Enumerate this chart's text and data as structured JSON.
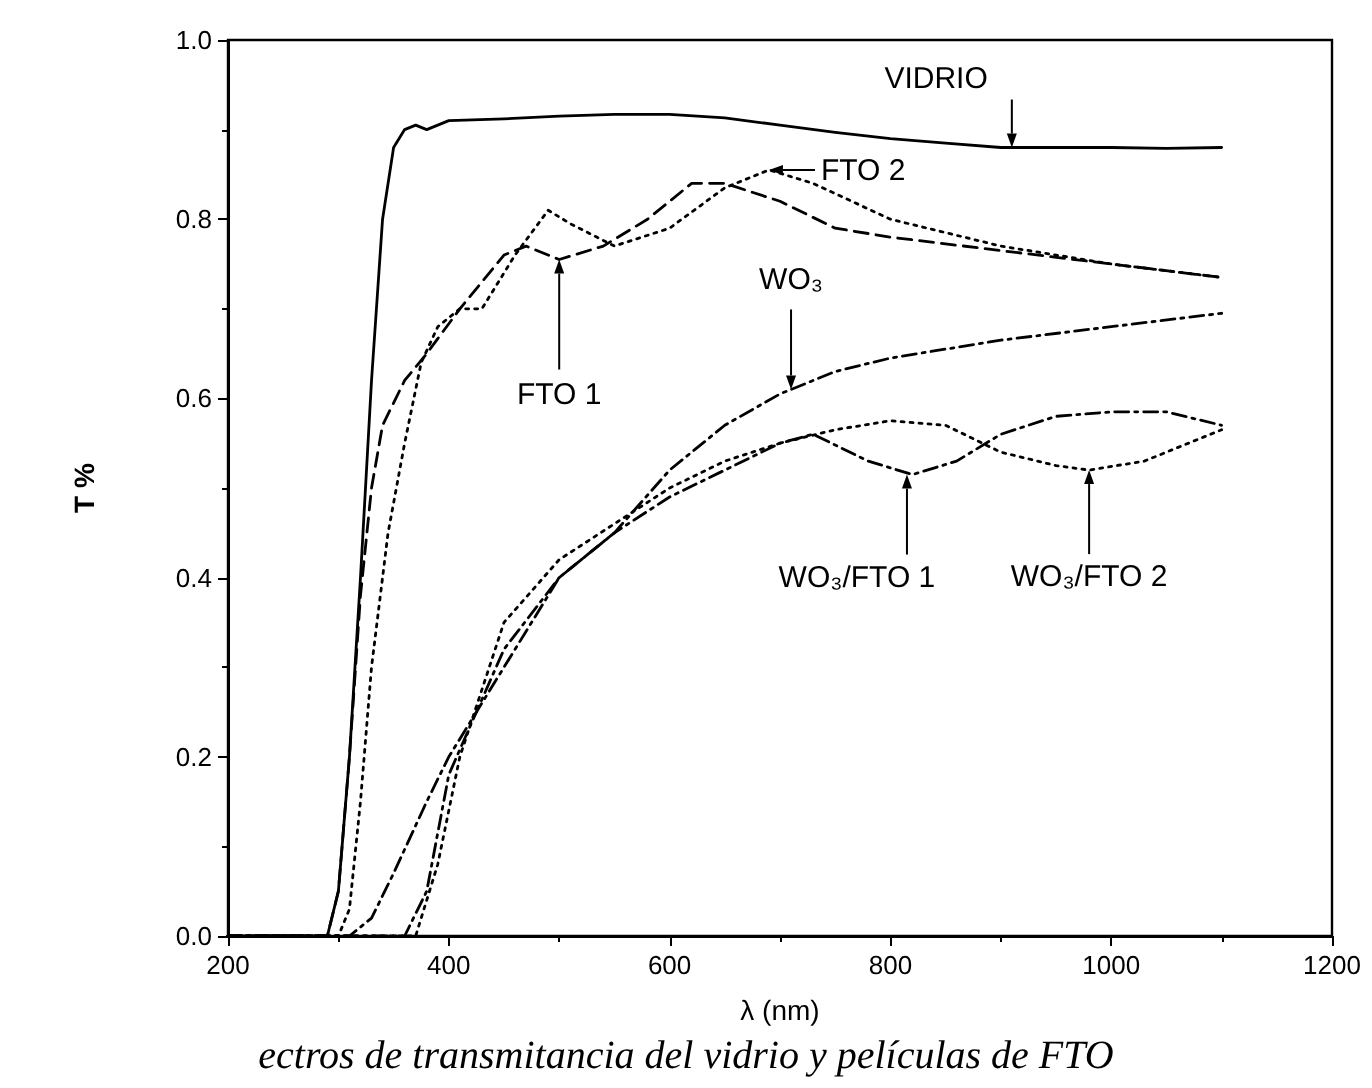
{
  "chart_data": {
    "type": "line",
    "xlabel": "λ (nm)",
    "ylabel": "T %",
    "xlim": [
      200,
      1200
    ],
    "xticks": [
      200,
      400,
      600,
      800,
      1000,
      1200
    ],
    "ylim": [
      0,
      1
    ],
    "yticks": [
      {
        "value": 0,
        "label": "0.0"
      },
      {
        "value": 0.2,
        "label": "0.2"
      },
      {
        "value": 0.4,
        "label": "0.4"
      },
      {
        "value": 0.6,
        "label": "0.6"
      },
      {
        "value": 0.8,
        "label": "0.8"
      },
      {
        "value": 1,
        "label": "1.0"
      }
    ],
    "grid": false,
    "marker": "none",
    "series": [
      {
        "color": "#000000",
        "line_style": "solid",
        "x": [
          200,
          290,
          300,
          310,
          320,
          330,
          340,
          350,
          360,
          370,
          380,
          400,
          450,
          500,
          550,
          600,
          650,
          700,
          750,
          800,
          850,
          900,
          950,
          1000,
          1050,
          1100
        ],
        "values": [
          0,
          0,
          0.05,
          0.2,
          0.4,
          0.62,
          0.8,
          0.88,
          0.9,
          0.905,
          0.9,
          0.91,
          0.912,
          0.915,
          0.917,
          0.917,
          0.913,
          0.905,
          0.897,
          0.89,
          0.885,
          0.88,
          0.88,
          0.88,
          0.879,
          0.88
        ]
      },
      {
        "color": "#000000",
        "line_style": "dashed",
        "x": [
          200,
          290,
          300,
          310,
          320,
          330,
          340,
          360,
          380,
          410,
          450,
          470,
          500,
          540,
          580,
          620,
          650,
          700,
          750,
          800,
          900,
          1000,
          1100
        ],
        "values": [
          0,
          0,
          0.05,
          0.2,
          0.38,
          0.5,
          0.57,
          0.62,
          0.65,
          0.7,
          0.76,
          0.77,
          0.755,
          0.77,
          0.8,
          0.84,
          0.84,
          0.82,
          0.79,
          0.78,
          0.765,
          0.75,
          0.735
        ]
      },
      {
        "color": "#000000",
        "line_style": "dotted",
        "x": [
          200,
          300,
          310,
          320,
          330,
          345,
          360,
          375,
          390,
          410,
          430,
          460,
          490,
          510,
          550,
          600,
          650,
          690,
          730,
          800,
          900,
          1000,
          1100
        ],
        "values": [
          0,
          0,
          0.03,
          0.15,
          0.3,
          0.45,
          0.55,
          0.64,
          0.68,
          0.7,
          0.7,
          0.76,
          0.81,
          0.795,
          0.77,
          0.79,
          0.835,
          0.855,
          0.84,
          0.8,
          0.77,
          0.75,
          0.735
        ]
      },
      {
        "color": "#000000",
        "line_style": "dashdot",
        "x": [
          200,
          310,
          330,
          350,
          380,
          400,
          450,
          500,
          550,
          600,
          650,
          700,
          750,
          800,
          900,
          1000,
          1100
        ],
        "values": [
          0,
          0,
          0.02,
          0.07,
          0.15,
          0.2,
          0.3,
          0.4,
          0.45,
          0.52,
          0.57,
          0.605,
          0.63,
          0.645,
          0.665,
          0.68,
          0.695
        ]
      },
      {
        "color": "#000000",
        "line_style": "dashdot",
        "x": [
          200,
          360,
          380,
          400,
          450,
          500,
          550,
          600,
          650,
          700,
          730,
          780,
          820,
          860,
          900,
          950,
          1000,
          1050,
          1100
        ],
        "values": [
          0,
          0,
          0.05,
          0.18,
          0.32,
          0.4,
          0.45,
          0.49,
          0.52,
          0.55,
          0.56,
          0.53,
          0.515,
          0.53,
          0.56,
          0.58,
          0.585,
          0.585,
          0.57
        ]
      },
      {
        "color": "#000000",
        "line_style": "dotted",
        "x": [
          200,
          370,
          390,
          410,
          450,
          500,
          550,
          600,
          650,
          700,
          750,
          800,
          850,
          900,
          950,
          980,
          1030,
          1100
        ],
        "values": [
          0,
          0,
          0.08,
          0.2,
          0.35,
          0.42,
          0.46,
          0.5,
          0.53,
          0.55,
          0.565,
          0.575,
          0.57,
          0.54,
          0.525,
          0.52,
          0.53,
          0.565
        ]
      }
    ],
    "annotations": [
      {
        "text": "VIDRIO",
        "x": 910,
        "y": 0.88
      },
      {
        "text": "FTO 2",
        "x": 690,
        "y": 0.855
      },
      {
        "text": "FTO 1",
        "x": 500,
        "y": 0.755
      },
      {
        "text": "WO₃",
        "x": 710,
        "y": 0.61
      },
      {
        "text": "WO₃/FTO 1",
        "x": 815,
        "y": 0.515
      },
      {
        "text": "WO₃/FTO 2",
        "x": 980,
        "y": 0.52
      },
      "ectros de transmitancia del vidrio y películas de FTO"
    ]
  }
}
